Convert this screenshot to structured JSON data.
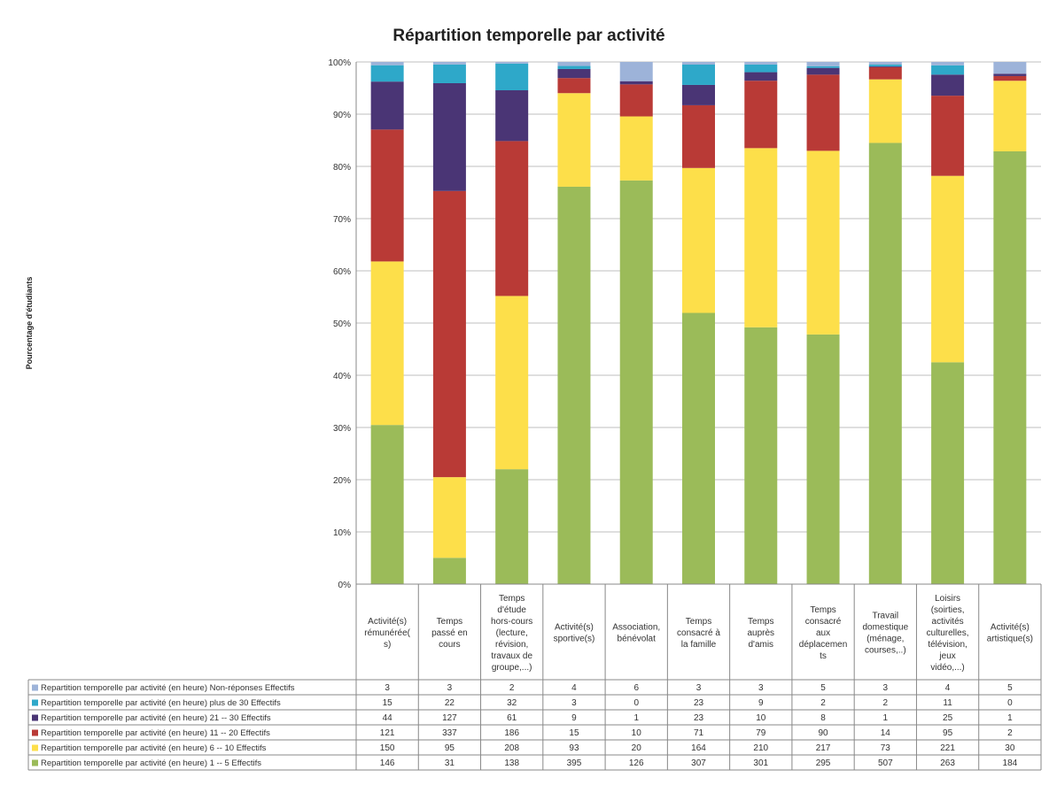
{
  "chart_data": {
    "type": "bar",
    "stacked": "percent",
    "title": "Répartition temporelle par activité",
    "ylabel": "Pourcentage d'étudiants",
    "ylim": [
      0,
      100
    ],
    "yticks": [
      "0%",
      "10%",
      "20%",
      "30%",
      "40%",
      "50%",
      "60%",
      "70%",
      "80%",
      "90%",
      "100%"
    ],
    "grid": true,
    "legend": "data-table",
    "categories": [
      "Activité(s) rémunérée(s)",
      "Temps passé en cours",
      "Temps d'étude hors-cours (lecture, révision, travaux de groupe,...)",
      "Activité(s) sportive(s)",
      "Association, bénévolat",
      "Temps consacré à la famille",
      "Temps auprès d'amis",
      "Temps consacré aux déplacements",
      "Travail domestique (ménage, courses,..)",
      "Loisirs (soirties, activités culturelles, télévision, jeux vidéo,...)",
      "Activité(s) artistique(s)"
    ],
    "category_label_lines": [
      [
        "Activité(s)",
        "rémunérée(",
        "s)"
      ],
      [
        "Temps",
        "passé en",
        "cours"
      ],
      [
        "Temps",
        "d'étude",
        "hors-cours",
        "(lecture,",
        "révision,",
        "travaux de",
        "groupe,...)"
      ],
      [
        "Activité(s)",
        "sportive(s)"
      ],
      [
        "Association,",
        "bénévolat"
      ],
      [
        "Temps",
        "consacré à",
        "la famille"
      ],
      [
        "Temps",
        "auprès",
        "d'amis"
      ],
      [
        "Temps",
        "consacré",
        "aux",
        "déplacemen",
        "ts"
      ],
      [
        "Travail",
        "domestique",
        "(ménage,",
        "courses,..)"
      ],
      [
        "Loisirs",
        "(soirties,",
        "activités",
        "culturelles,",
        "télévision,",
        "jeux",
        "vidéo,...)"
      ],
      [
        "Activité(s)",
        "artistique(s)"
      ]
    ],
    "series": [
      {
        "name": "Repartition temporelle par activité (en heure) Non-réponses Effectifs",
        "color": "#9DB3D9",
        "values": [
          3,
          3,
          2,
          4,
          6,
          3,
          3,
          5,
          3,
          4,
          5
        ]
      },
      {
        "name": "Repartition temporelle par activité (en heure) plus de 30 Effectifs",
        "color": "#2EA8C9",
        "values": [
          15,
          22,
          32,
          3,
          0,
          23,
          9,
          2,
          2,
          11,
          0
        ]
      },
      {
        "name": "Repartition temporelle par activité (en heure) 21 -- 30 Effectifs",
        "color": "#4A3575",
        "values": [
          44,
          127,
          61,
          9,
          1,
          23,
          10,
          8,
          1,
          25,
          1
        ]
      },
      {
        "name": "Repartition temporelle par activité (en heure) 11 -- 20 Effectifs",
        "color": "#B93A36",
        "values": [
          121,
          337,
          186,
          15,
          10,
          71,
          79,
          90,
          14,
          95,
          2
        ]
      },
      {
        "name": "Repartition temporelle par activité (en heure) 6 -- 10 Effectifs",
        "color": "#FDDF4A",
        "values": [
          150,
          95,
          208,
          93,
          20,
          164,
          210,
          217,
          73,
          221,
          30
        ]
      },
      {
        "name": "Repartition temporelle par activité (en heure) 1 -- 5 Effectifs",
        "color": "#9BBB59",
        "values": [
          146,
          31,
          138,
          395,
          126,
          307,
          301,
          295,
          507,
          263,
          184
        ]
      }
    ]
  }
}
